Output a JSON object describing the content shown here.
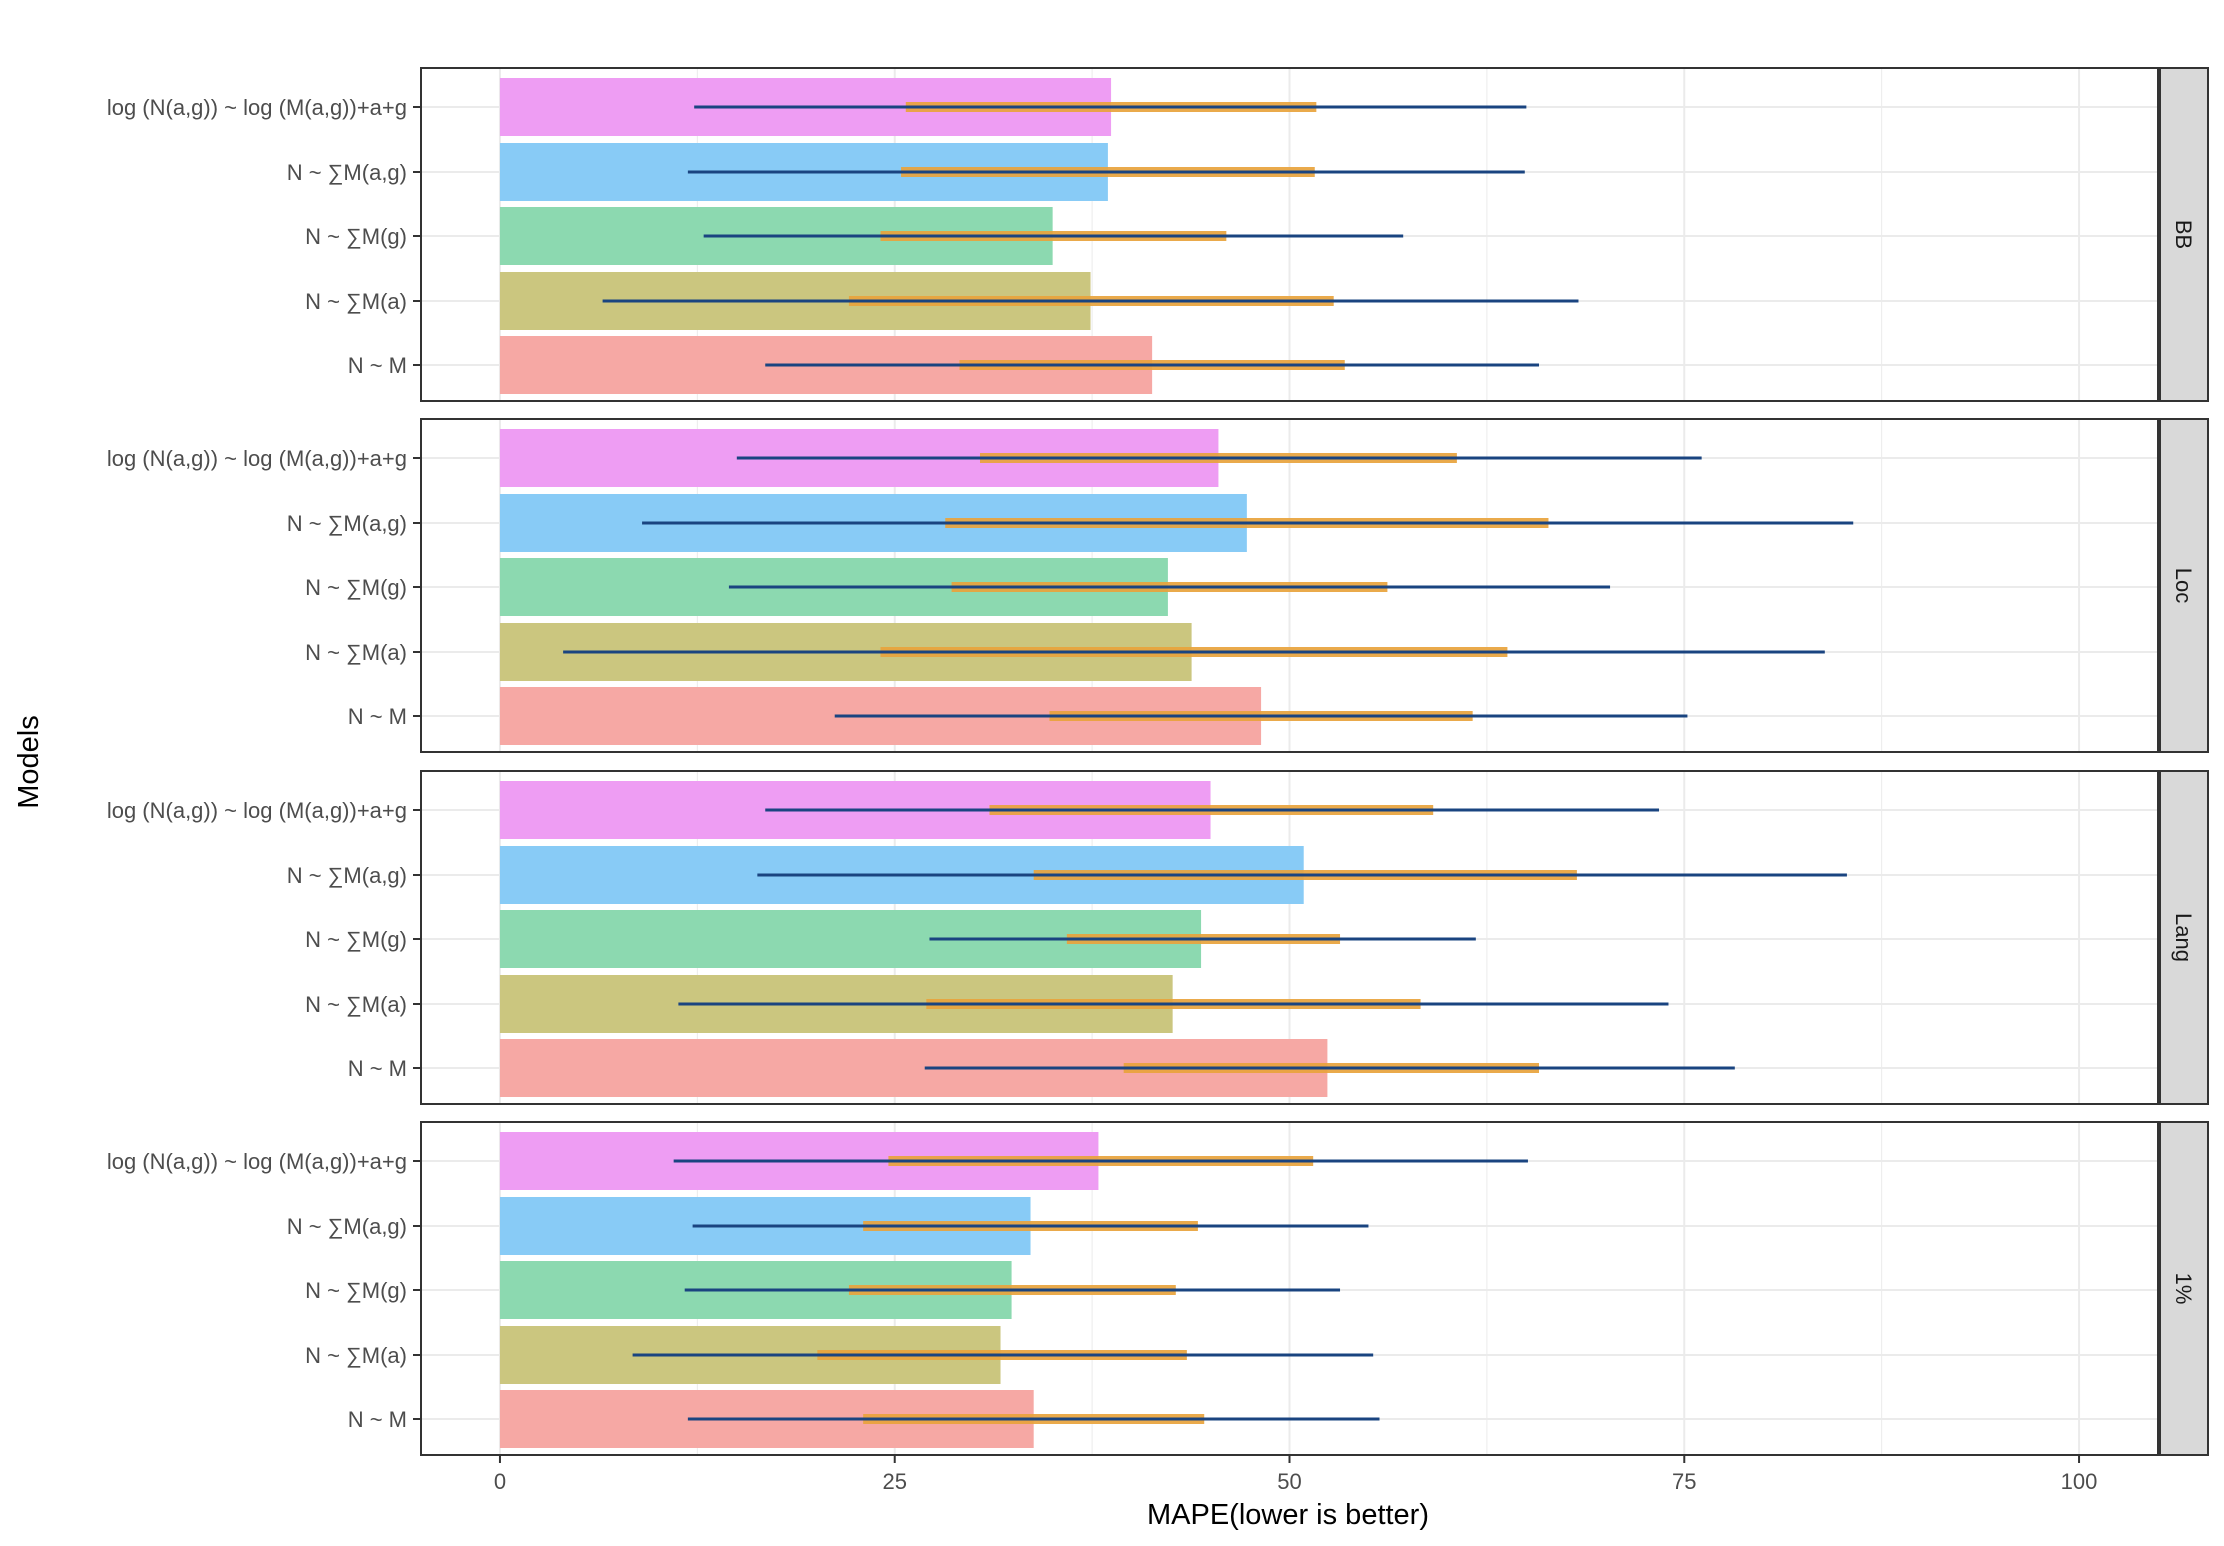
{
  "chart_data": {
    "type": "bar",
    "orientation": "horizontal",
    "xlabel": "MAPE(lower is better)",
    "ylabel": "Models",
    "xlim": [
      -5,
      105
    ],
    "x_ticks": [
      0,
      25,
      50,
      75,
      100
    ],
    "x_tick_labels": [
      "0",
      "25",
      "50",
      "75",
      "100"
    ],
    "categories": [
      "log (N(a,g)) ~ log (M(a,g))+a+g",
      "N ~ ∑M(a,g)",
      "N ~ ∑M(g)",
      "N ~ ∑M(a)",
      "N ~ M"
    ],
    "colors": {
      "log (N(a,g)) ~ log (M(a,g))+a+g": "#ee9df3",
      "N ~ ∑M(a,g)": "#88cbf6",
      "N ~ ∑M(g)": "#8cd9b0",
      "N ~ ∑M(a)": "#cbc67f",
      "N ~ M": "#f6a8a4",
      "thin_range": "#1a4480",
      "thick_range": "#e8a33c",
      "panel_border": "#333333",
      "strip_fill": "#d9d9d9",
      "grid": "#ebebeb"
    },
    "legend": "none",
    "grid": true,
    "panels": [
      {
        "strip": "BB",
        "values": [
          38.7,
          38.5,
          35.0,
          37.4,
          41.3
        ],
        "thin_range": [
          [
            12.3,
            65.0
          ],
          [
            11.9,
            64.9
          ],
          [
            12.9,
            57.2
          ],
          [
            6.5,
            68.3
          ],
          [
            16.8,
            65.8
          ]
        ],
        "thick_range": [
          [
            25.7,
            51.7
          ],
          [
            25.4,
            51.6
          ],
          [
            24.1,
            46.0
          ],
          [
            22.1,
            52.8
          ],
          [
            29.1,
            53.5
          ]
        ]
      },
      {
        "strip": "Loc",
        "values": [
          45.5,
          47.3,
          42.3,
          43.8,
          48.2
        ],
        "thin_range": [
          [
            15.0,
            76.1
          ],
          [
            9.0,
            85.7
          ],
          [
            14.5,
            70.3
          ],
          [
            4.0,
            83.9
          ],
          [
            21.2,
            75.2
          ]
        ],
        "thick_range": [
          [
            30.4,
            60.6
          ],
          [
            28.2,
            66.4
          ],
          [
            28.6,
            56.2
          ],
          [
            24.1,
            63.8
          ],
          [
            34.8,
            61.6
          ]
        ]
      },
      {
        "strip": "Lang",
        "values": [
          45.0,
          50.9,
          44.4,
          42.6,
          52.4
        ],
        "thin_range": [
          [
            16.8,
            73.4
          ],
          [
            16.3,
            85.3
          ],
          [
            27.2,
            61.8
          ],
          [
            11.3,
            74.0
          ],
          [
            26.9,
            78.2
          ]
        ],
        "thick_range": [
          [
            31.0,
            59.1
          ],
          [
            33.8,
            68.2
          ],
          [
            35.9,
            53.2
          ],
          [
            27.0,
            58.3
          ],
          [
            39.5,
            65.8
          ]
        ]
      },
      {
        "strip": "1%",
        "values": [
          37.9,
          33.6,
          32.4,
          31.7,
          33.8
        ],
        "thin_range": [
          [
            11.0,
            65.1
          ],
          [
            12.2,
            55.0
          ],
          [
            11.7,
            53.2
          ],
          [
            8.4,
            55.3
          ],
          [
            11.9,
            55.7
          ]
        ],
        "thick_range": [
          [
            24.6,
            51.5
          ],
          [
            23.0,
            44.2
          ],
          [
            22.1,
            42.8
          ],
          [
            20.1,
            43.5
          ],
          [
            23.0,
            44.6
          ]
        ]
      }
    ]
  }
}
